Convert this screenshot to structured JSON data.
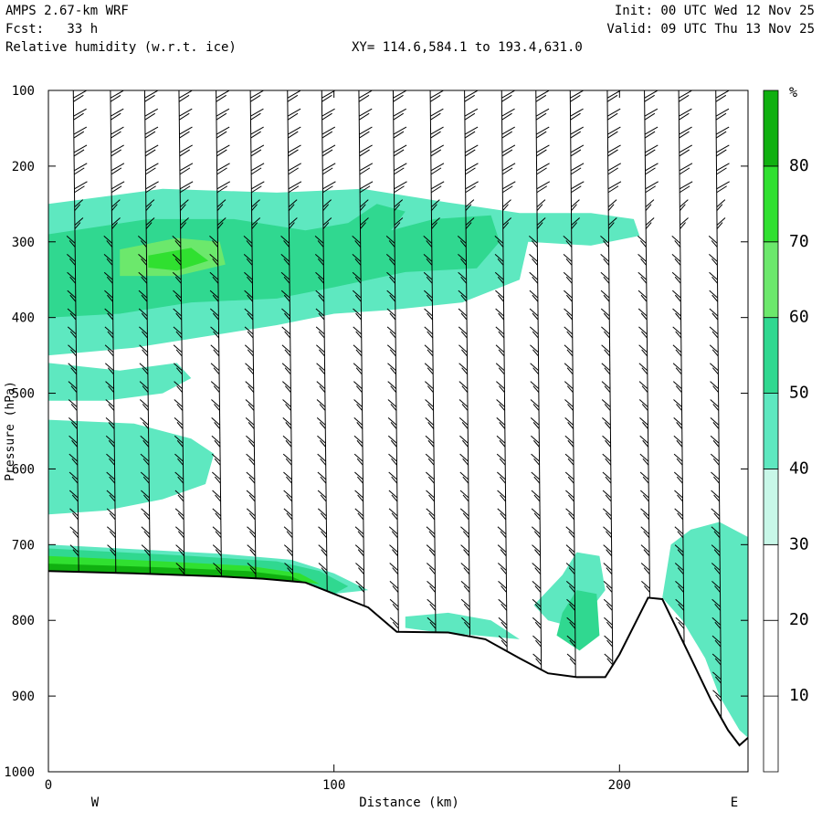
{
  "header": {
    "model": "AMPS 2.67-km WRF",
    "fcst": "Fcst:   33 h",
    "field": "Relative humidity (w.r.t. ice)",
    "init": "Init: 00 UTC Wed 12 Nov 25",
    "valid": "Valid: 09 UTC Thu 13 Nov 25",
    "xy": "XY= 114.6,584.1 to 193.4,631.0"
  },
  "chart_data": {
    "type": "heatmap",
    "title": "Relative humidity (w.r.t. ice)",
    "xlabel": "Distance (km)",
    "ylabel": "Pressure (hPa)",
    "xlim": [
      0,
      245
    ],
    "ylim": [
      1000,
      100
    ],
    "x_ticks": [
      "0",
      "100",
      "200"
    ],
    "y_ticks": [
      "100",
      "200",
      "300",
      "400",
      "500",
      "600",
      "700",
      "800",
      "900",
      "1000"
    ],
    "x_end_labels": {
      "left": "W",
      "right": "E"
    },
    "colorbar": {
      "unit": "%",
      "levels": [
        10,
        20,
        30,
        40,
        50,
        60,
        70,
        80
      ],
      "labels": [
        "10",
        "20",
        "30",
        "40",
        "50",
        "60",
        "70",
        "80"
      ],
      "colors": [
        "#ffffff",
        "#ffffff",
        "#ffffff",
        "#c8f7e8",
        "#5ee8c0",
        "#30d890",
        "#6ce86c",
        "#30e030",
        "#10b010"
      ]
    },
    "terrain": [
      [
        0,
        735
      ],
      [
        30,
        738
      ],
      [
        60,
        742
      ],
      [
        75,
        745
      ],
      [
        90,
        750
      ],
      [
        100,
        765
      ],
      [
        112,
        783
      ],
      [
        122,
        815
      ],
      [
        140,
        816
      ],
      [
        153,
        825
      ],
      [
        165,
        850
      ],
      [
        175,
        870
      ],
      [
        185,
        875
      ],
      [
        195,
        875
      ],
      [
        200,
        845
      ],
      [
        210,
        770
      ],
      [
        215,
        772
      ],
      [
        225,
        850
      ],
      [
        232,
        905
      ],
      [
        238,
        945
      ],
      [
        242,
        965
      ],
      [
        245,
        955
      ],
      [
        245,
        1000
      ],
      [
        0,
        1000
      ]
    ],
    "rh_regions": [
      {
        "level": 40,
        "points": [
          [
            0,
            250
          ],
          [
            40,
            230
          ],
          [
            80,
            235
          ],
          [
            110,
            230
          ],
          [
            140,
            248
          ],
          [
            165,
            262
          ],
          [
            190,
            262
          ],
          [
            205,
            270
          ],
          [
            207,
            292
          ],
          [
            190,
            305
          ],
          [
            168,
            300
          ],
          [
            165,
            350
          ],
          [
            145,
            380
          ],
          [
            120,
            390
          ],
          [
            100,
            395
          ],
          [
            80,
            410
          ],
          [
            55,
            425
          ],
          [
            30,
            440
          ],
          [
            0,
            450
          ]
        ]
      },
      {
        "level": 40,
        "points": [
          [
            0,
            460
          ],
          [
            25,
            470
          ],
          [
            45,
            460
          ],
          [
            50,
            480
          ],
          [
            40,
            500
          ],
          [
            20,
            510
          ],
          [
            0,
            510
          ]
        ]
      },
      {
        "level": 40,
        "points": [
          [
            0,
            535
          ],
          [
            30,
            540
          ],
          [
            50,
            560
          ],
          [
            58,
            580
          ],
          [
            55,
            620
          ],
          [
            40,
            640
          ],
          [
            20,
            655
          ],
          [
            0,
            660
          ]
        ]
      },
      {
        "level": 40,
        "points": [
          [
            185,
            710
          ],
          [
            193,
            715
          ],
          [
            195,
            760
          ],
          [
            185,
            810
          ],
          [
            175,
            800
          ],
          [
            170,
            780
          ],
          [
            180,
            740
          ]
        ]
      },
      {
        "level": 40,
        "points": [
          [
            225,
            680
          ],
          [
            235,
            670
          ],
          [
            245,
            690
          ],
          [
            245,
            955
          ],
          [
            242,
            945
          ],
          [
            235,
            900
          ],
          [
            230,
            850
          ],
          [
            222,
            800
          ],
          [
            215,
            770
          ],
          [
            218,
            700
          ]
        ]
      },
      {
        "level": 40,
        "points": [
          [
            125,
            795
          ],
          [
            140,
            790
          ],
          [
            155,
            800
          ],
          [
            165,
            825
          ],
          [
            150,
            820
          ],
          [
            135,
            815
          ],
          [
            125,
            810
          ]
        ]
      },
      {
        "level": 50,
        "points": [
          [
            0,
            290
          ],
          [
            35,
            270
          ],
          [
            65,
            270
          ],
          [
            90,
            285
          ],
          [
            105,
            275
          ],
          [
            115,
            250
          ],
          [
            125,
            260
          ],
          [
            120,
            285
          ],
          [
            135,
            270
          ],
          [
            155,
            265
          ],
          [
            158,
            300
          ],
          [
            150,
            335
          ],
          [
            125,
            340
          ],
          [
            100,
            360
          ],
          [
            80,
            375
          ],
          [
            50,
            380
          ],
          [
            25,
            395
          ],
          [
            0,
            400
          ]
        ]
      },
      {
        "level": 50,
        "points": [
          [
            185,
            760
          ],
          [
            192,
            765
          ],
          [
            193,
            820
          ],
          [
            186,
            840
          ],
          [
            178,
            820
          ],
          [
            180,
            790
          ]
        ]
      },
      {
        "level": 60,
        "points": [
          [
            25,
            310
          ],
          [
            45,
            295
          ],
          [
            60,
            300
          ],
          [
            62,
            330
          ],
          [
            45,
            345
          ],
          [
            25,
            345
          ]
        ]
      },
      {
        "level": 70,
        "points": [
          [
            35,
            318
          ],
          [
            50,
            308
          ],
          [
            56,
            325
          ],
          [
            45,
            338
          ],
          [
            35,
            334
          ]
        ]
      },
      {
        "level": 40,
        "points": [
          [
            0,
            700
          ],
          [
            60,
            712
          ],
          [
            85,
            720
          ],
          [
            100,
            738
          ],
          [
            112,
            760
          ],
          [
            100,
            765
          ],
          [
            90,
            750
          ],
          [
            75,
            745
          ],
          [
            60,
            742
          ],
          [
            30,
            738
          ],
          [
            0,
            735
          ]
        ]
      },
      {
        "level": 50,
        "points": [
          [
            0,
            705
          ],
          [
            50,
            715
          ],
          [
            80,
            722
          ],
          [
            95,
            735
          ],
          [
            105,
            755
          ],
          [
            100,
            765
          ],
          [
            90,
            750
          ],
          [
            75,
            745
          ],
          [
            60,
            742
          ],
          [
            30,
            738
          ],
          [
            0,
            735
          ]
        ]
      },
      {
        "level": 70,
        "points": [
          [
            0,
            715
          ],
          [
            40,
            722
          ],
          [
            70,
            728
          ],
          [
            88,
            738
          ],
          [
            95,
            752
          ],
          [
            90,
            750
          ],
          [
            75,
            745
          ],
          [
            60,
            742
          ],
          [
            30,
            738
          ],
          [
            0,
            735
          ]
        ]
      },
      {
        "level": 80,
        "points": [
          [
            0,
            725
          ],
          [
            40,
            730
          ],
          [
            70,
            735
          ],
          [
            85,
            742
          ],
          [
            90,
            750
          ],
          [
            75,
            745
          ],
          [
            60,
            742
          ],
          [
            30,
            738
          ],
          [
            0,
            735
          ]
        ]
      }
    ],
    "barb_columns_km": [
      10,
      23,
      35,
      47,
      60,
      72,
      85,
      97,
      110,
      122,
      135,
      147,
      160,
      172,
      184,
      197,
      210,
      222,
      235
    ]
  }
}
